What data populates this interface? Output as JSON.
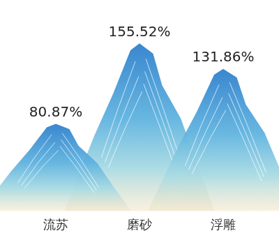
{
  "chart_data": {
    "type": "bar",
    "marker": "mountain",
    "categories": [
      "流苏",
      "磨砂",
      "浮雕"
    ],
    "values": [
      80.87,
      155.52,
      131.86
    ],
    "value_labels": [
      "80.87%",
      "155.52%",
      "131.86%"
    ],
    "data_labels": true,
    "color": "#2f80cc",
    "ylim": [
      0,
      170
    ],
    "grid": false,
    "tick_labels": "x"
  }
}
